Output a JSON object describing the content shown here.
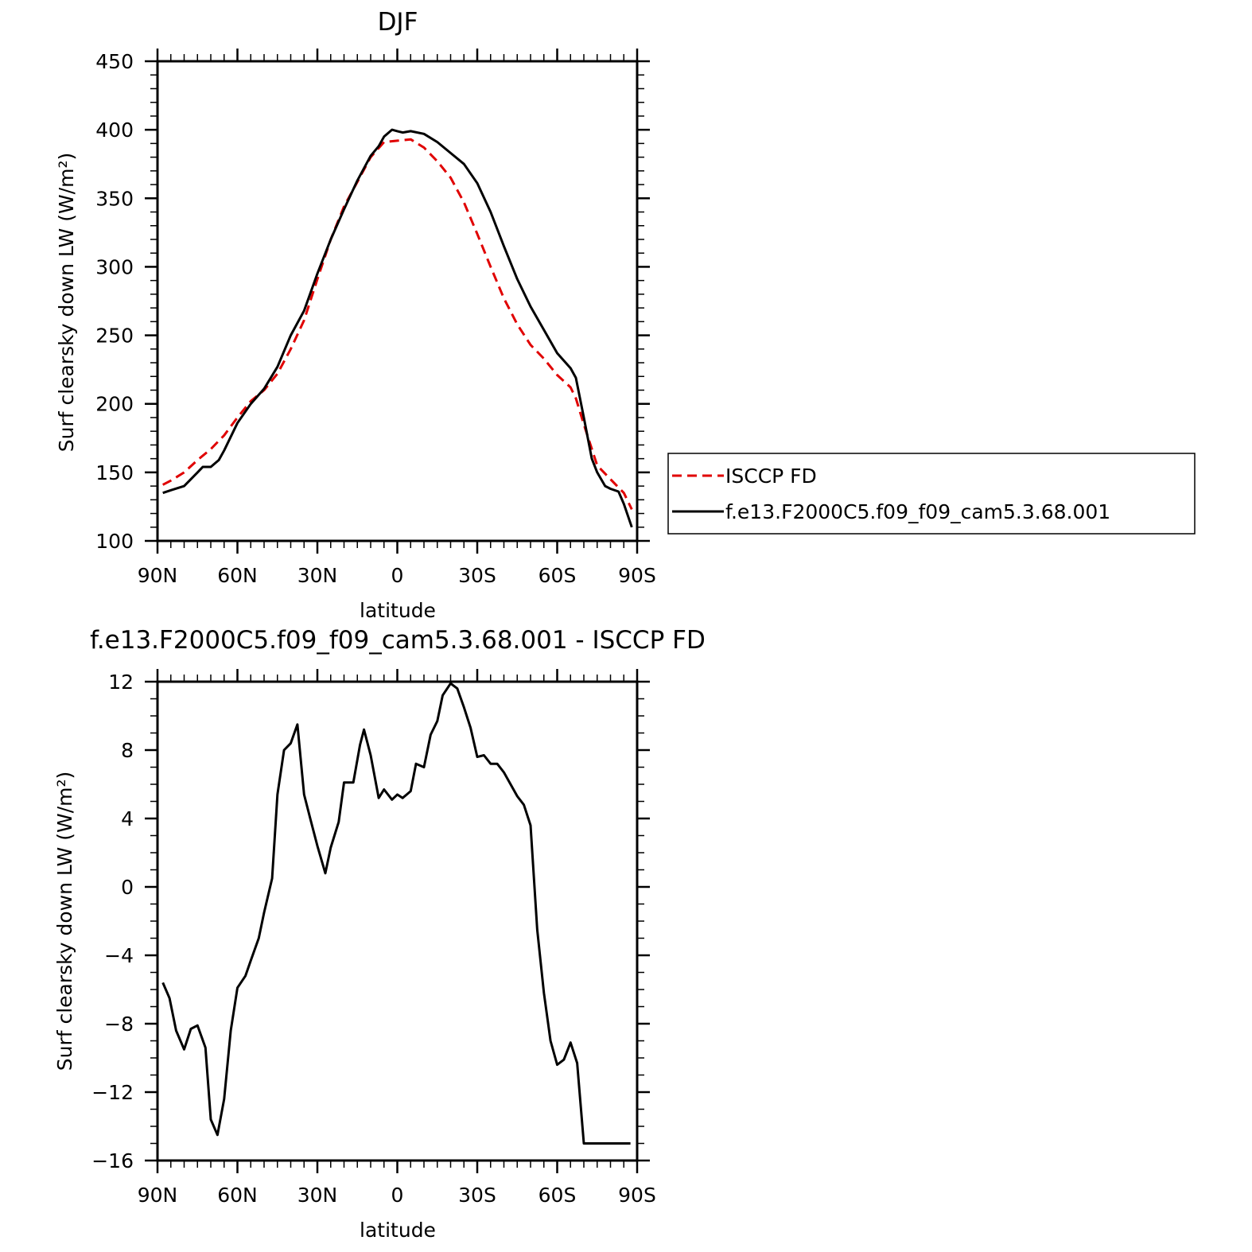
{
  "chart_data": [
    {
      "type": "line",
      "title": "DJF",
      "xlabel": "latitude",
      "ylabel": "Surf clearsky down LW (W/m²)",
      "xlim": [
        90,
        -90
      ],
      "ylim": [
        100,
        450
      ],
      "x_ticks": [
        {
          "value": 90,
          "label": "90N"
        },
        {
          "value": 60,
          "label": "60N"
        },
        {
          "value": 30,
          "label": "30N"
        },
        {
          "value": 0,
          "label": "0"
        },
        {
          "value": -30,
          "label": "30S"
        },
        {
          "value": -60,
          "label": "60S"
        },
        {
          "value": -90,
          "label": "90S"
        }
      ],
      "y_ticks": [
        100,
        150,
        200,
        250,
        300,
        350,
        400,
        450
      ],
      "y_tick_labels": [
        "100",
        "150",
        "200",
        "250",
        "300",
        "350",
        "400",
        "450"
      ],
      "legend_position": "right",
      "series": [
        {
          "name": "ISCCP FD",
          "color": "#e00000",
          "dash": "dashed",
          "x": [
            88,
            85,
            80,
            75,
            70,
            65,
            60,
            55,
            50,
            45,
            40,
            35,
            30,
            25,
            20,
            15,
            10,
            5,
            0,
            -5,
            -10,
            -15,
            -20,
            -25,
            -30,
            -35,
            -40,
            -45,
            -50,
            -55,
            -60,
            -65,
            -67,
            -70,
            -75,
            -80,
            -85,
            -88
          ],
          "y": [
            141,
            144,
            150,
            159,
            167,
            177,
            190,
            202,
            210,
            222,
            240,
            261,
            291,
            320,
            344,
            362,
            380,
            391,
            392,
            393,
            387,
            377,
            365,
            347,
            324,
            300,
            277,
            258,
            243,
            233,
            221,
            212,
            204,
            185,
            155,
            145,
            135,
            123
          ]
        },
        {
          "name": "f.e13.F2000C5.f09_f09_cam5.3.68.001",
          "color": "#000000",
          "dash": "solid",
          "x": [
            88,
            85,
            80,
            75,
            73,
            70,
            67,
            65,
            60,
            55,
            50,
            45,
            40,
            35,
            30,
            25,
            20,
            15,
            10,
            7,
            5,
            2,
            0,
            -2,
            -5,
            -10,
            -15,
            -20,
            -25,
            -30,
            -35,
            -40,
            -45,
            -50,
            -55,
            -60,
            -65,
            -67,
            -70,
            -73,
            -75,
            -78,
            -80,
            -83,
            -85,
            -88
          ],
          "y": [
            135,
            137,
            140,
            150,
            154,
            154,
            159,
            166,
            186,
            200,
            211,
            227,
            250,
            268,
            295,
            320,
            342,
            363,
            381,
            388,
            395,
            400,
            399,
            398,
            399,
            397,
            391,
            383,
            375,
            361,
            340,
            315,
            291,
            271,
            254,
            237,
            226,
            219,
            190,
            160,
            150,
            140,
            138,
            136,
            127,
            110
          ]
        }
      ]
    },
    {
      "type": "line",
      "title": "f.e13.F2000C5.f09_f09_cam5.3.68.001 - ISCCP FD",
      "xlabel": "latitude",
      "ylabel": "Surf clearsky down LW (W/m²)",
      "xlim": [
        90,
        -90
      ],
      "ylim": [
        -16,
        12
      ],
      "x_ticks": [
        {
          "value": 90,
          "label": "90N"
        },
        {
          "value": 60,
          "label": "60N"
        },
        {
          "value": 30,
          "label": "30N"
        },
        {
          "value": 0,
          "label": "0"
        },
        {
          "value": -30,
          "label": "30S"
        },
        {
          "value": -60,
          "label": "60S"
        },
        {
          "value": -90,
          "label": "90S"
        }
      ],
      "y_ticks": [
        -16,
        -12,
        -8,
        -4,
        0,
        4,
        8,
        12
      ],
      "y_tick_labels": [
        "−16",
        "−12",
        "−8",
        "−4",
        "0",
        "4",
        "8",
        "12"
      ],
      "series": [
        {
          "name": "",
          "color": "#000000",
          "dash": "solid",
          "x": [
            88,
            85.5,
            83,
            80,
            77.5,
            75,
            72,
            70,
            67.5,
            65,
            62.5,
            60,
            57,
            55,
            52,
            50,
            47,
            45,
            42.5,
            40,
            37.5,
            35,
            32.5,
            30,
            27,
            25,
            22,
            20,
            16.5,
            14,
            12.5,
            10,
            7,
            5,
            2,
            0,
            -2,
            -5,
            -7,
            -10,
            -12.5,
            -15,
            -17,
            -20,
            -22.5,
            -25,
            -27.5,
            -30,
            -32.5,
            -35,
            -37.5,
            -40,
            -42.5,
            -45,
            -47.5,
            -50,
            -52.5,
            -55,
            -57.5,
            -60,
            -62.5,
            -65,
            -67.5,
            -70,
            -72.5,
            -75,
            -77.5,
            -80,
            -82.5,
            -85,
            -87.5
          ],
          "y": [
            -5.6,
            -6.5,
            -8.4,
            -9.5,
            -8.3,
            -8.1,
            -9.4,
            -13.6,
            -14.5,
            -12.4,
            -8.4,
            -5.9,
            -5.2,
            -4.3,
            -3.0,
            -1.5,
            0.5,
            5.4,
            8.0,
            8.4,
            9.5,
            5.4,
            3.9,
            2.4,
            0.8,
            2.3,
            3.8,
            6.1,
            6.1,
            8.3,
            9.2,
            7.7,
            5.2,
            5.7,
            5.1,
            5.4,
            5.2,
            5.6,
            7.2,
            7.0,
            8.9,
            9.7,
            11.2,
            11.9,
            11.6,
            10.5,
            9.3,
            7.6,
            7.7,
            7.2,
            7.2,
            6.7,
            6.0,
            5.3,
            4.8,
            3.6,
            -2.5,
            -6.2,
            -9.0,
            -10.4,
            -10.1,
            -9.1,
            -10.3,
            -15.0,
            -15.0,
            -15.0,
            -15.0,
            -15.0,
            -15.0,
            -15.0,
            -15.0
          ]
        }
      ]
    }
  ]
}
